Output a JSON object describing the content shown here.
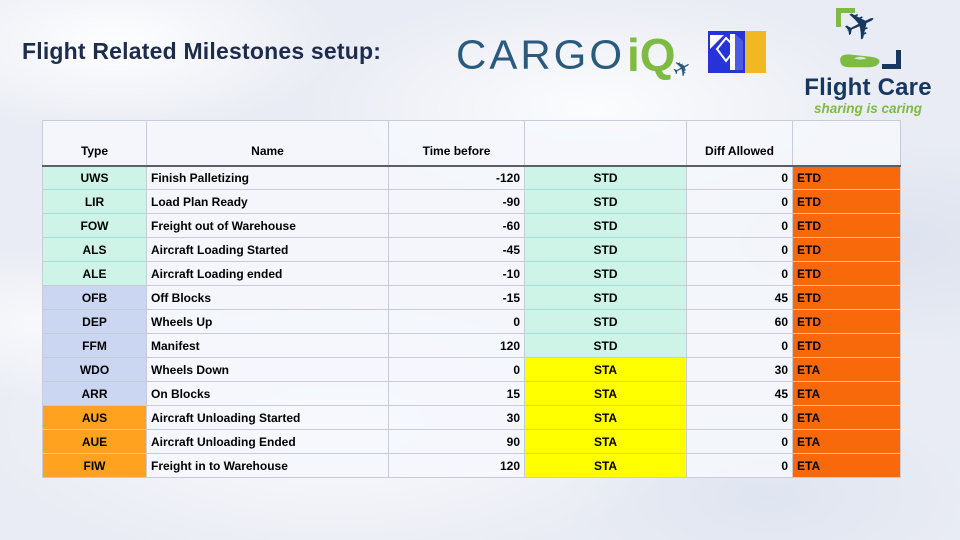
{
  "slide": {
    "title": "Flight Related Milestones setup:"
  },
  "logos": {
    "cargoiq": {
      "word": "CARGO",
      "accent": "iQ",
      "plane_glyph": "✈"
    },
    "flightcare": {
      "name": "Flight Care",
      "tagline": "sharing is caring",
      "plane_glyph": "✈"
    }
  },
  "table": {
    "headers": {
      "type": "Type",
      "name": "Name",
      "time_before": "Time before",
      "ref": "",
      "diff_allowed": "Diff Allowed",
      "est": ""
    },
    "rows": [
      {
        "type": "UWS",
        "name": "Finish Palletizing",
        "time_before": "-120",
        "ref": "STD",
        "diff_allowed": "0",
        "est": "ETD",
        "group": "mint"
      },
      {
        "type": "LIR",
        "name": "Load Plan Ready",
        "time_before": "-90",
        "ref": "STD",
        "diff_allowed": "0",
        "est": "ETD",
        "group": "mint"
      },
      {
        "type": "FOW",
        "name": "Freight out of Warehouse",
        "time_before": "-60",
        "ref": "STD",
        "diff_allowed": "0",
        "est": "ETD",
        "group": "mint"
      },
      {
        "type": "ALS",
        "name": "Aircraft Loading Started",
        "time_before": "-45",
        "ref": "STD",
        "diff_allowed": "0",
        "est": "ETD",
        "group": "mint"
      },
      {
        "type": "ALE",
        "name": "Aircraft Loading ended",
        "time_before": "-10",
        "ref": "STD",
        "diff_allowed": "0",
        "est": "ETD",
        "group": "mint"
      },
      {
        "type": "OFB",
        "name": "Off Blocks",
        "time_before": "-15",
        "ref": "STD",
        "diff_allowed": "45",
        "est": "ETD",
        "group": "lavender"
      },
      {
        "type": "DEP",
        "name": "Wheels Up",
        "time_before": "0",
        "ref": "STD",
        "diff_allowed": "60",
        "est": "ETD",
        "group": "lavender"
      },
      {
        "type": "FFM",
        "name": "Manifest",
        "time_before": "120",
        "ref": "STD",
        "diff_allowed": "0",
        "est": "ETD",
        "group": "lavender"
      },
      {
        "type": "WDO",
        "name": "Wheels Down",
        "time_before": "0",
        "ref": "STA",
        "diff_allowed": "30",
        "est": "ETA",
        "group": "lavender"
      },
      {
        "type": "ARR",
        "name": "On Blocks",
        "time_before": "15",
        "ref": "STA",
        "diff_allowed": "45",
        "est": "ETA",
        "group": "lavender"
      },
      {
        "type": "AUS",
        "name": "Aircraft Unloading Started",
        "time_before": "30",
        "ref": "STA",
        "diff_allowed": "0",
        "est": "ETA",
        "group": "orange"
      },
      {
        "type": "AUE",
        "name": "Aircraft Unloading Ended",
        "time_before": "90",
        "ref": "STA",
        "diff_allowed": "0",
        "est": "ETA",
        "group": "orange"
      },
      {
        "type": "FIW",
        "name": "Freight in to Warehouse",
        "time_before": "120",
        "ref": "STA",
        "diff_allowed": "0",
        "est": "ETA",
        "group": "orange"
      }
    ]
  },
  "colors": {
    "title": "#1d2b4c",
    "navy": "#16375f",
    "green": "#7dbb42",
    "cargo-navy": "#2a5b7e",
    "mint": "#cdf4e6",
    "lavender": "#cbd6f2",
    "yellow": "#ffff00",
    "orange-type": "#ffa21f",
    "orange-est": "#f8690b",
    "grid": "#c7ccd8",
    "logo-blue": "#2633d9",
    "logo-yellow": "#f2b822"
  }
}
